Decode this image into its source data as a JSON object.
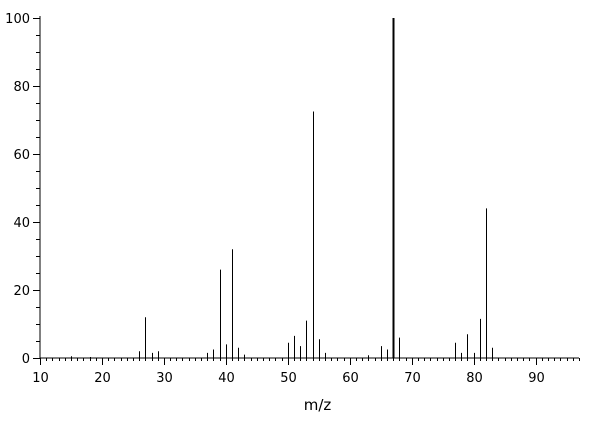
{
  "chart_data": {
    "type": "bar",
    "title": "",
    "xlabel": "m/z",
    "ylabel": "",
    "xlim": [
      10,
      97
    ],
    "ylim": [
      0,
      100
    ],
    "x_ticks": [
      10,
      20,
      30,
      40,
      50,
      60,
      70,
      80,
      90
    ],
    "y_ticks": [
      0,
      20,
      40,
      60,
      80,
      100
    ],
    "grid": false,
    "legend": "none",
    "bar_color": "#000000",
    "series": [
      {
        "x": [
          15,
          18,
          26,
          27,
          28,
          29,
          37,
          38,
          39,
          40,
          41,
          42,
          43,
          50,
          51,
          52,
          53,
          54,
          55,
          56,
          63,
          65,
          66,
          67,
          68,
          77,
          78,
          79,
          80,
          81,
          82,
          83
        ],
        "values": [
          0.5,
          0.3,
          2,
          12,
          1.5,
          2,
          1.5,
          2.5,
          26,
          4,
          32,
          3,
          1,
          4.5,
          6.5,
          3.5,
          11,
          72.5,
          5.5,
          1.5,
          0.8,
          3.5,
          2.5,
          100,
          6,
          4.5,
          1.5,
          7,
          1.5,
          11.5,
          44,
          3
        ]
      }
    ]
  }
}
